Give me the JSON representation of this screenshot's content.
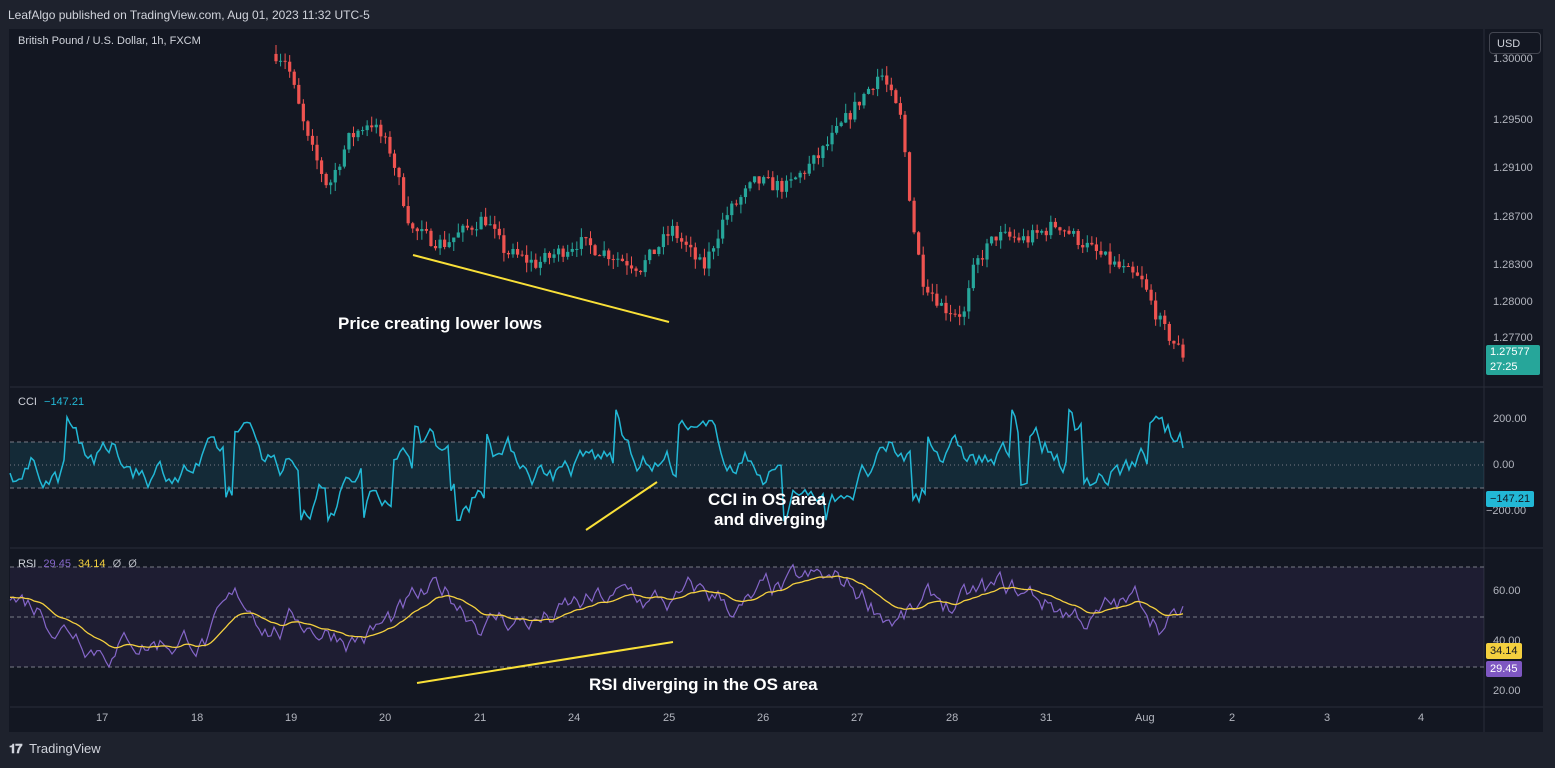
{
  "header": {
    "published": "LeafAlgo published on TradingView.com, Aug 01, 2023 11:32 UTC-5"
  },
  "symbol": {
    "title": "British Pound / U.S. Dollar, 1h, FXCM"
  },
  "currency_button": "USD",
  "price_axis": {
    "ticks": [
      "1.30000",
      "1.29500",
      "1.29100",
      "1.28700",
      "1.28300",
      "1.28000",
      "1.27700"
    ],
    "last_price": "1.27577",
    "countdown": "27:25"
  },
  "cci": {
    "label": "CCI",
    "value": "−147.21",
    "axis_ticks": [
      "200.00",
      "0.00",
      "−200.00"
    ],
    "last_value_label": "−147.21"
  },
  "rsi": {
    "label": "RSI",
    "value_rsi": "29.45",
    "value_ma": "34.14",
    "value_extra_1": "Ø",
    "value_extra_2": "Ø",
    "axis_ticks": [
      "60.00",
      "40.00",
      "20.00"
    ],
    "ma_label": "34.14",
    "rsi_label": "29.45"
  },
  "time_axis": [
    "17",
    "18",
    "19",
    "20",
    "21",
    "24",
    "25",
    "26",
    "27",
    "28",
    "31",
    "Aug",
    "2",
    "3",
    "4"
  ],
  "annotations": {
    "price": "Price creating lower lows",
    "cci_line1": "CCI in OS area",
    "cci_line2": "and diverging",
    "rsi": "RSI diverging in the OS area"
  },
  "footer": {
    "brand": "TradingView"
  },
  "colors": {
    "up": "#26a69a",
    "down": "#ef5350",
    "cci": "#22b8d6",
    "rsi": "#8566c9",
    "rsi_ma": "#f4d03f",
    "trendline": "#f9e038"
  },
  "chart_data": {
    "type": "candlestick-with-indicators",
    "close_anchors": [
      [
        0.19,
        1.3005
      ],
      [
        0.2,
        1.3
      ],
      [
        0.22,
        1.2935
      ],
      [
        0.24,
        1.2895
      ],
      [
        0.26,
        1.2935
      ],
      [
        0.28,
        1.295
      ],
      [
        0.3,
        1.2925
      ],
      [
        0.32,
        1.286
      ],
      [
        0.35,
        1.2848
      ],
      [
        0.39,
        1.287
      ],
      [
        0.41,
        1.2842
      ],
      [
        0.44,
        1.2832
      ],
      [
        0.48,
        1.285
      ],
      [
        0.51,
        1.284
      ],
      [
        0.54,
        1.2829
      ],
      [
        0.57,
        1.286
      ],
      [
        0.6,
        1.2828
      ],
      [
        0.62,
        1.287
      ],
      [
        0.65,
        1.29
      ],
      [
        0.68,
        1.2895
      ],
      [
        0.71,
        1.292
      ],
      [
        0.74,
        1.2955
      ],
      [
        0.77,
        1.299
      ],
      [
        0.79,
        1.295
      ],
      [
        0.8,
        1.287
      ],
      [
        0.81,
        1.282
      ],
      [
        0.83,
        1.2796
      ],
      [
        0.85,
        1.279
      ],
      [
        0.86,
        1.283
      ],
      [
        0.88,
        1.2855
      ],
      [
        0.91,
        1.2852
      ],
      [
        0.94,
        1.2865
      ],
      [
        0.97,
        1.2845
      ],
      [
        1.0,
        1.2828
      ],
      [
        1.02,
        1.2818
      ],
      [
        1.04,
        1.278
      ],
      [
        1.06,
        1.2757
      ]
    ],
    "cci_range": [
      -250,
      250
    ],
    "cci_levels": [
      100,
      0,
      -100
    ],
    "rsi_levels": [
      70,
      50,
      30
    ]
  }
}
